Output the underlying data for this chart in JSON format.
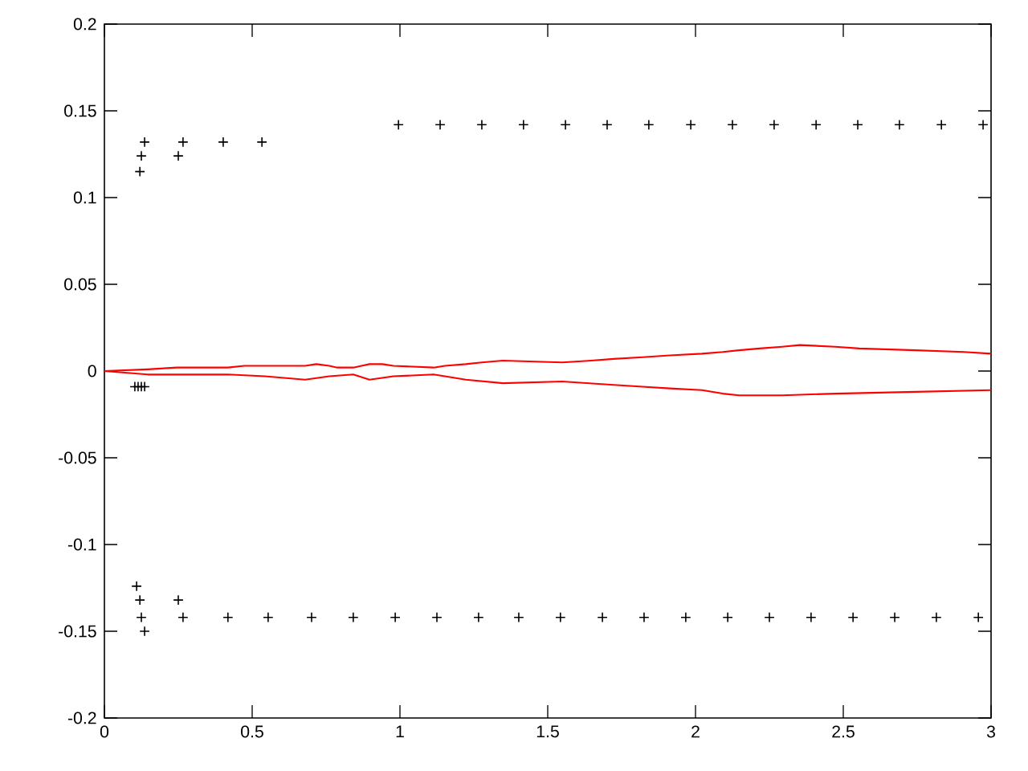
{
  "chart_data": {
    "type": "scatter",
    "xlim": [
      0,
      3
    ],
    "ylim": [
      -0.2,
      0.2
    ],
    "xticks": [
      0,
      0.5,
      1,
      1.5,
      2,
      2.5,
      3
    ],
    "yticks": [
      -0.2,
      -0.15,
      -0.1,
      -0.05,
      0,
      0.05,
      0.1,
      0.15,
      0.2
    ],
    "grid": false,
    "series": [
      {
        "marker": "cross",
        "color": "#000000",
        "x": [
          0.995,
          1.136,
          1.277,
          1.418,
          1.56,
          1.701,
          1.842,
          1.984,
          2.125,
          2.266,
          2.408,
          2.549,
          2.69,
          2.832,
          2.973,
          0.136,
          0.266,
          0.402,
          0.533,
          0.125,
          0.25,
          0.12,
          0.125,
          0.266,
          0.418,
          0.554,
          0.701,
          0.842,
          0.984,
          1.125,
          1.266,
          1.402,
          1.543,
          1.685,
          1.826,
          1.967,
          2.109,
          2.25,
          2.391,
          2.533,
          2.674,
          2.815,
          2.957,
          0.109,
          0.12,
          0.25,
          0.136,
          0.103,
          0.114,
          0.125,
          0.136
        ],
        "values": [
          0.142,
          0.142,
          0.142,
          0.142,
          0.142,
          0.142,
          0.142,
          0.142,
          0.142,
          0.142,
          0.142,
          0.142,
          0.142,
          0.142,
          0.142,
          0.132,
          0.132,
          0.132,
          0.132,
          0.124,
          0.124,
          0.115,
          -0.142,
          -0.142,
          -0.142,
          -0.142,
          -0.142,
          -0.142,
          -0.142,
          -0.142,
          -0.142,
          -0.142,
          -0.142,
          -0.142,
          -0.142,
          -0.142,
          -0.142,
          -0.142,
          -0.142,
          -0.142,
          -0.142,
          -0.142,
          -0.142,
          -0.124,
          -0.132,
          -0.132,
          -0.15,
          -0.009,
          -0.009,
          -0.009,
          -0.009
        ]
      },
      {
        "type": "line",
        "color": "#ff0000",
        "x": [
          0,
          0.147,
          0.245,
          0.418,
          0.473,
          0.543,
          0.625,
          0.679,
          0.717,
          0.761,
          0.788,
          0.842,
          0.87,
          0.897,
          0.94,
          0.978,
          1.114,
          1.152,
          1.223,
          1.277,
          1.348,
          1.549,
          1.647,
          1.723,
          1.821,
          1.913,
          2.022,
          2.092,
          2.147,
          2.217,
          2.293,
          2.353,
          2.473,
          2.554,
          2.745,
          2.908,
          3.0
        ],
        "values": [
          0,
          0.001,
          0.002,
          0.002,
          0.003,
          0.003,
          0.003,
          0.003,
          0.004,
          0.003,
          0.002,
          0.002,
          0.003,
          0.004,
          0.004,
          0.003,
          0.002,
          0.003,
          0.004,
          0.005,
          0.006,
          0.005,
          0.006,
          0.007,
          0.008,
          0.009,
          0.01,
          0.011,
          0.012,
          0.013,
          0.014,
          0.015,
          0.014,
          0.013,
          0.012,
          0.011,
          0.01
        ]
      },
      {
        "type": "line",
        "color": "#ff0000",
        "x": [
          0,
          0.147,
          0.418,
          0.543,
          0.679,
          0.761,
          0.842,
          0.897,
          0.978,
          1.114,
          1.223,
          1.348,
          1.549,
          1.723,
          1.821,
          1.913,
          2.022,
          2.092,
          2.147,
          2.293,
          2.473,
          2.745,
          3.0
        ],
        "values": [
          0,
          -0.002,
          -0.002,
          -0.003,
          -0.005,
          -0.003,
          -0.002,
          -0.005,
          -0.003,
          -0.002,
          -0.005,
          -0.007,
          -0.006,
          -0.008,
          -0.009,
          -0.01,
          -0.011,
          -0.013,
          -0.014,
          -0.014,
          -0.013,
          -0.012,
          -0.011
        ]
      }
    ]
  }
}
